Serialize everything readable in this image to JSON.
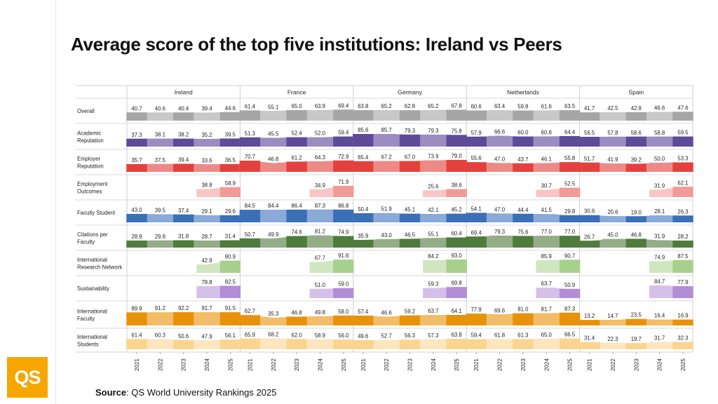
{
  "title": "Average score of the top five institutions: Ireland vs Peers",
  "source": {
    "label": "Source",
    "text": ": QS World University Rankings 2025"
  },
  "logo": "QS",
  "chart_data": {
    "type": "area",
    "years": [
      "2021",
      "2022",
      "2023",
      "2024",
      "2025"
    ],
    "countries": [
      "Ireland",
      "France",
      "Germany",
      "Netherlands",
      "Spain"
    ],
    "metrics": [
      {
        "name": "Overall",
        "color": "#a6a6a6",
        "light": "#c8c8c8",
        "values": [
          [
            40.7,
            40.6,
            40.4,
            39.4,
            44.6
          ],
          [
            61.4,
            55.1,
            65.0,
            63.9,
            69.4
          ],
          [
            63.8,
            65.2,
            62.8,
            65.2,
            67.8
          ],
          [
            60.6,
            63.4,
            59.8,
            61.6,
            63.5
          ],
          [
            41.7,
            42.5,
            42.9,
            46.6,
            47.6
          ]
        ]
      },
      {
        "name": "Academic Reputation",
        "color": "#5e4b97",
        "light": "#9b8dc0",
        "values": [
          [
            37.3,
            38.1,
            38.2,
            35.2,
            39.5
          ],
          [
            51.3,
            45.5,
            52.4,
            52.0,
            59.4
          ],
          [
            85.6,
            85.7,
            79.3,
            79.3,
            75.8
          ],
          [
            57.9,
            66.6,
            60.0,
            60.8,
            64.4
          ],
          [
            56.5,
            57.8,
            58.6,
            58.8,
            59.5
          ]
        ]
      },
      {
        "name": "Employer Reputation",
        "color": "#e5413c",
        "light": "#ee8a86",
        "values": [
          [
            35.7,
            37.5,
            39.4,
            33.6,
            36.5
          ],
          [
            70.7,
            46.8,
            61.2,
            64.3,
            72.9
          ],
          [
            65.4,
            67.2,
            67.0,
            73.9,
            79.0
          ],
          [
            55.6,
            47.0,
            43.7,
            46.1,
            55.8
          ],
          [
            51.7,
            41.9,
            39.2,
            50.0,
            53.3
          ]
        ]
      },
      {
        "name": "Employment Outcomes",
        "color": "#f29a97",
        "light": "#f8c6c4",
        "values": [
          [
            null,
            null,
            null,
            38.8,
            58.9
          ],
          [
            null,
            null,
            null,
            34.9,
            71.9
          ],
          [
            null,
            null,
            null,
            25.6,
            38.6
          ],
          [
            null,
            null,
            null,
            30.7,
            52.5
          ],
          [
            null,
            null,
            null,
            31.9,
            62.1
          ]
        ]
      },
      {
        "name": "Faculty Student",
        "color": "#3b6fb6",
        "light": "#8aaad8",
        "values": [
          [
            43.0,
            39.5,
            37.4,
            29.1,
            29.6
          ],
          [
            84.5,
            84.4,
            86.4,
            87.3,
            86.8
          ],
          [
            50.4,
            51.9,
            45.1,
            42.1,
            45.2
          ],
          [
            54.1,
            47.0,
            44.4,
            41.5,
            29.8
          ],
          [
            30.6,
            20.6,
            19.0,
            28.1,
            26.3
          ]
        ]
      },
      {
        "name": "Citations per Faculty",
        "color": "#4f7b3c",
        "light": "#93ad86",
        "values": [
          [
            28.9,
            29.9,
            31.8,
            28.7,
            31.4
          ],
          [
            50.7,
            49.9,
            74.6,
            81.2,
            74.9
          ],
          [
            35.9,
            43.0,
            46.5,
            55.1,
            60.4
          ],
          [
            69.4,
            79.3,
            75.6,
            77.0,
            77.0
          ],
          [
            26.7,
            45.0,
            46.8,
            31.9,
            28.2
          ]
        ]
      },
      {
        "name": "International Research Network",
        "color": "#a8d08d",
        "light": "#d0e6c0",
        "values": [
          [
            null,
            null,
            null,
            42.9,
            80.9
          ],
          [
            null,
            null,
            null,
            67.7,
            91.6
          ],
          [
            null,
            null,
            null,
            84.2,
            93.0
          ],
          [
            null,
            null,
            null,
            85.9,
            90.7
          ],
          [
            null,
            null,
            null,
            74.9,
            87.5
          ]
        ]
      },
      {
        "name": "Sustainability",
        "color": "#b38dd6",
        "light": "#d5c0ea",
        "values": [
          [
            null,
            null,
            null,
            78.8,
            82.5
          ],
          [
            null,
            null,
            null,
            51.0,
            59.0
          ],
          [
            null,
            null,
            null,
            59.3,
            69.8
          ],
          [
            null,
            null,
            null,
            63.7,
            50.9
          ],
          [
            null,
            null,
            null,
            84.7,
            77.9
          ]
        ]
      },
      {
        "name": "International Faculty",
        "color": "#e8920c",
        "light": "#f2bd66",
        "values": [
          [
            89.9,
            91.2,
            92.2,
            91.7,
            91.5
          ],
          [
            62.7,
            35.3,
            46.8,
            49.8,
            58.0
          ],
          [
            57.4,
            46.6,
            59.2,
            63.7,
            64.1
          ],
          [
            77.9,
            69.6,
            81.0,
            81.7,
            87.3
          ],
          [
            13.2,
            14.7,
            23.5,
            16.4,
            16.9
          ]
        ]
      },
      {
        "name": "International Students",
        "color": "#fbd48f",
        "light": "#fde6bd",
        "values": [
          [
            61.4,
            60.3,
            50.6,
            47.9,
            56.1
          ],
          [
            65.9,
            68.2,
            62.0,
            58.9,
            56.0
          ],
          [
            49.6,
            52.7,
            56.3,
            57.3,
            63.8
          ],
          [
            59.4,
            61.8,
            61.3,
            65.0,
            66.5
          ],
          [
            31.4,
            22.3,
            19.7,
            31.7,
            32.3
          ]
        ]
      }
    ]
  }
}
